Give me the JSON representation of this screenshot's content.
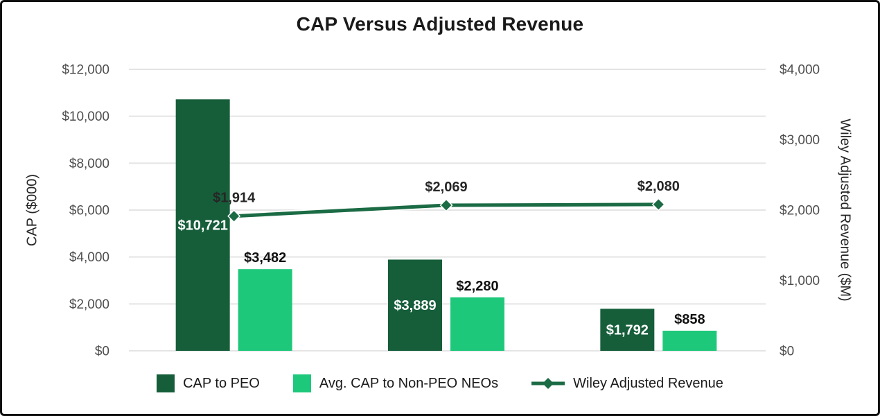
{
  "title": "CAP Versus Adjusted Revenue",
  "chart_data": {
    "type": "combo-bar-line",
    "group_count": 3,
    "series": [
      {
        "name": "CAP to PEO",
        "kind": "bar",
        "axis": "left",
        "color": "#165E3A",
        "values": [
          10721,
          3889,
          1792
        ],
        "data_labels": [
          "$10,721",
          "$3,889",
          "$1,792"
        ],
        "label_style": "white-inside"
      },
      {
        "name": "Avg. CAP to Non-PEO NEOs",
        "kind": "bar",
        "axis": "left",
        "color": "#1EC87A",
        "values": [
          3482,
          2280,
          858
        ],
        "data_labels": [
          "$3,482",
          "$2,280",
          "$858"
        ],
        "label_style": "dark-above"
      },
      {
        "name": "Wiley Adjusted Revenue",
        "kind": "line",
        "axis": "right",
        "color": "#1B6B45",
        "values": [
          1914,
          2069,
          2080
        ],
        "data_labels": [
          "$1,914",
          "$2,069",
          "$2,080"
        ],
        "label_style": "dark-above-marker"
      }
    ],
    "left_axis": {
      "title": "CAP ($000)",
      "min": 0,
      "max": 12000,
      "step": 2000,
      "tick_labels": [
        "$12,000",
        "$10,000",
        "$8,000",
        "$6,000",
        "$4,000",
        "$2,000",
        "$0"
      ]
    },
    "right_axis": {
      "title": "Wiley Adjusted Revenue ($M)",
      "min": 0,
      "max": 4000,
      "step": 1000,
      "tick_labels": [
        "$4,000",
        "$3,000",
        "$2,000",
        "$1,000",
        "$0"
      ]
    },
    "grid": {
      "show": true,
      "color": "#E4E4E4"
    },
    "tick_color": "#4D4D4D",
    "data_label_colors": {
      "inside": "#FFFFFF",
      "outside": "#111111",
      "line": "#262626"
    },
    "legend_position": "bottom"
  }
}
